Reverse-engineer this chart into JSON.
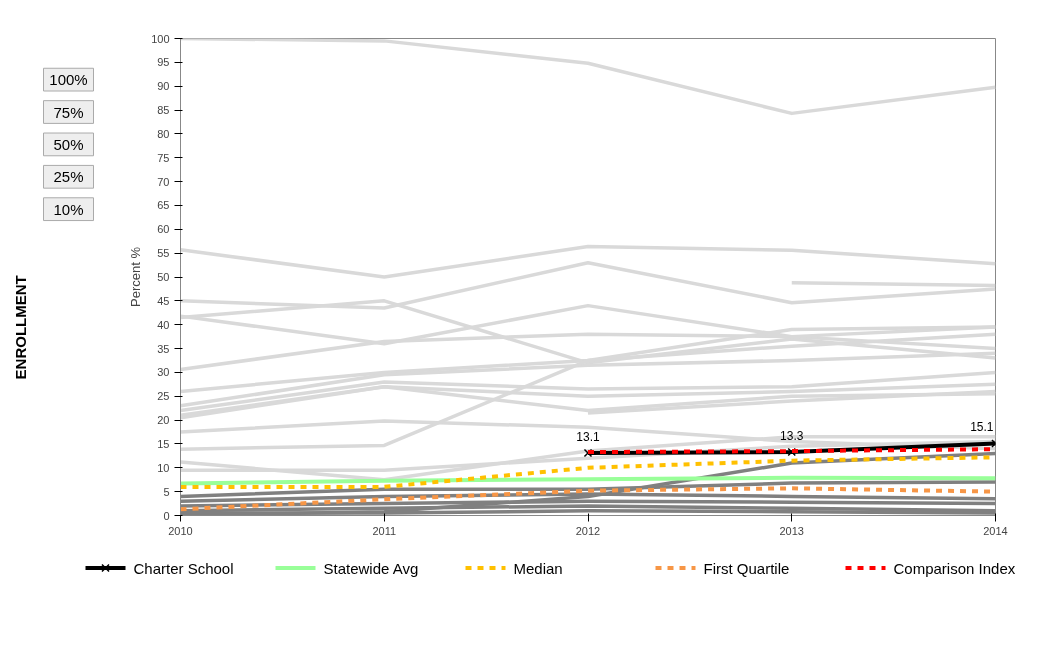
{
  "chart_data": {
    "type": "line",
    "ylabel": "Percent %",
    "x": [
      2010,
      2011,
      2012,
      2013,
      2014
    ],
    "xlim": [
      2010,
      2014
    ],
    "xticks": [
      2010,
      2011,
      2012,
      2013,
      2014
    ],
    "ylim": [
      0,
      100
    ],
    "yticks": [
      0,
      5,
      10,
      15,
      20,
      25,
      30,
      35,
      40,
      45,
      50,
      55,
      60,
      65,
      70,
      75,
      80,
      85,
      90,
      95,
      100
    ],
    "grid": false,
    "legend": "bottom",
    "annotations": [
      "100%",
      "75%",
      "50%",
      "25%",
      "10%",
      "ENROLLMENT"
    ],
    "series": [
      {
        "color": "#d9d9d9",
        "values": [
          100,
          99.5,
          94.8,
          84.3,
          89.8
        ]
      },
      {
        "color": "#d9d9d9",
        "values": [
          55.7,
          50,
          56.4,
          55.6,
          52.8
        ]
      },
      {
        "color": "#d9d9d9",
        "values": [
          45,
          43.5,
          53,
          44.6,
          47.5
        ]
      },
      {
        "color": "#d9d9d9",
        "values": [
          41.5,
          45,
          32,
          37,
          33
        ]
      },
      {
        "color": "#d9d9d9",
        "values": [
          41.8,
          36,
          44,
          37.5,
          35
        ]
      },
      {
        "color": "#d9d9d9",
        "values": [
          30.6,
          36.5,
          38,
          37.5,
          39.5
        ]
      },
      {
        "color": "#d9d9d9",
        "values": [
          null,
          null,
          null,
          48.8,
          48.2
        ]
      },
      {
        "color": "#d9d9d9",
        "values": [
          26,
          30,
          32.5,
          39,
          39.5
        ]
      },
      {
        "color": "#d9d9d9",
        "values": [
          23,
          29.5,
          31.5,
          32.5,
          34
        ]
      },
      {
        "color": "#d9d9d9",
        "values": [
          22,
          28,
          26.5,
          27,
          30
        ]
      },
      {
        "color": "#d9d9d9",
        "values": [
          21,
          27,
          25,
          26,
          27.5
        ]
      },
      {
        "color": "#d9d9d9",
        "values": [
          20.5,
          27,
          22,
          25,
          25.5
        ]
      },
      {
        "color": "#d9d9d9",
        "values": [
          17.5,
          19.8,
          18.5,
          15.5,
          14
        ]
      },
      {
        "color": "#d9d9d9",
        "values": [
          13.9,
          14.7,
          32.5,
          35.5,
          38
        ]
      },
      {
        "color": "#d9d9d9",
        "values": [
          null,
          null,
          21.5,
          24,
          26
        ]
      },
      {
        "color": "#d9d9d9",
        "values": [
          11.2,
          7.5,
          13.5,
          16.5,
          16.5
        ]
      },
      {
        "color": "#d9d9d9",
        "values": [
          9.5,
          9.5,
          12,
          14.5,
          15.5
        ]
      },
      {
        "color": "#808080",
        "values": [
          4,
          5.5,
          5.5,
          6.8,
          7
        ]
      },
      {
        "color": "#808080",
        "values": [
          3,
          4,
          4.5,
          4,
          3.5
        ]
      },
      {
        "color": "#808080",
        "values": [
          2,
          2.5,
          3,
          2.8,
          2.5
        ]
      },
      {
        "color": "#808080",
        "values": [
          1,
          1.5,
          2,
          1.5,
          1
        ]
      },
      {
        "color": "#808080",
        "values": [
          0.5,
          0.5,
          1,
          0.8,
          0.5
        ]
      },
      {
        "color": "#808080",
        "values": [
          0,
          0.8,
          4,
          11,
          13
        ]
      },
      {
        "name": "Charter School",
        "color": "#000000",
        "marker": "cross",
        "values": [
          null,
          null,
          13.1,
          13.3,
          15.1
        ],
        "value_labels": [
          null,
          null,
          "13.1",
          "13.3",
          "15.1"
        ]
      },
      {
        "name": "Statewide Avg",
        "color": "#99ff99",
        "values": [
          6.7,
          7.3,
          7.6,
          7.9,
          7.8
        ]
      },
      {
        "name": "Median",
        "color": "#ffc000",
        "line_style": "dashed",
        "values": [
          6,
          6,
          10,
          11.5,
          12.2
        ]
      },
      {
        "name": "First Quartile",
        "color": "#f79646",
        "line_style": "dashed",
        "values": [
          1.3,
          3.4,
          5.2,
          5.7,
          5
        ]
      },
      {
        "name": "Comparison Index",
        "color": "#ff0000",
        "line_style": "dashed",
        "values": [
          null,
          null,
          13.3,
          13.5,
          13.9
        ]
      }
    ]
  }
}
